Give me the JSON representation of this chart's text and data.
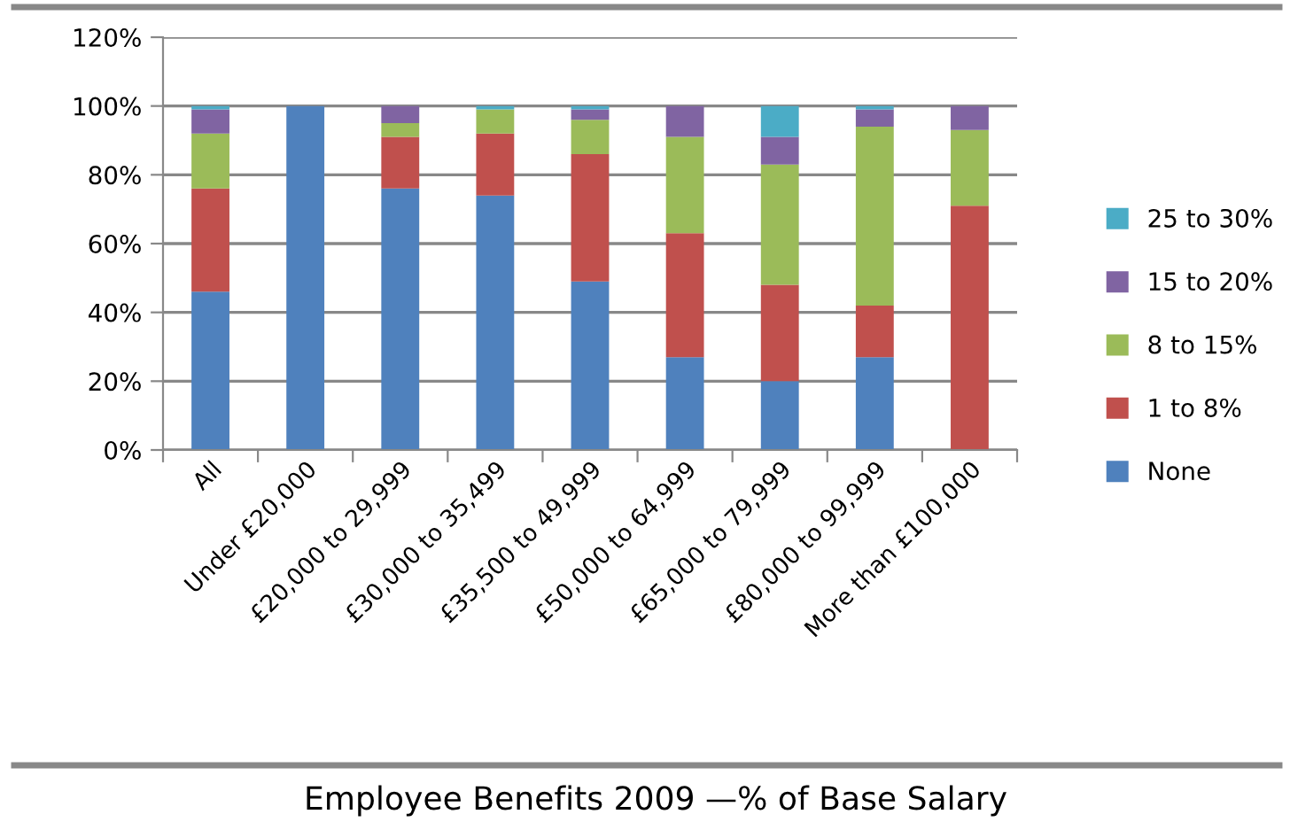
{
  "chart_data": {
    "type": "bar",
    "stacked": true,
    "title": "Employee Benefits 2009 —% of Base Salary",
    "categories": [
      "All",
      "Under £20,000",
      "£20,000 to 29,999",
      "£30,000 to 35,499",
      "£35,500 to 49,999",
      "£50,000 to 64,999",
      "£65,000 to 79,999",
      "£80,000 to 99,999",
      "More than £100,000"
    ],
    "series": [
      {
        "name": "None",
        "color": "#4f81bd",
        "values": [
          46,
          100,
          76,
          74,
          49,
          27,
          20,
          27,
          0
        ]
      },
      {
        "name": "1 to 8%",
        "color": "#c0504d",
        "values": [
          30,
          0,
          15,
          18,
          37,
          36,
          28,
          15,
          71
        ]
      },
      {
        "name": "8 to 15%",
        "color": "#9bbb59",
        "values": [
          16,
          0,
          4,
          7,
          10,
          28,
          35,
          52,
          22
        ]
      },
      {
        "name": "15 to 20%",
        "color": "#8064a2",
        "values": [
          7,
          0,
          5,
          0,
          3,
          9,
          8,
          5,
          7
        ]
      },
      {
        "name": "25 to 30%",
        "color": "#4bacc6",
        "values": [
          1,
          0,
          0,
          1,
          1,
          0,
          9,
          1,
          0
        ]
      }
    ],
    "ylim": [
      0,
      120
    ],
    "yticks": [
      {
        "value": 0,
        "label": "0%"
      },
      {
        "value": 20,
        "label": "20%"
      },
      {
        "value": 40,
        "label": "40%"
      },
      {
        "value": 60,
        "label": "60%"
      },
      {
        "value": 80,
        "label": "80%"
      },
      {
        "value": 100,
        "label": "100%"
      },
      {
        "value": 120,
        "label": "120%"
      }
    ],
    "grid": "y",
    "legend": "right"
  }
}
